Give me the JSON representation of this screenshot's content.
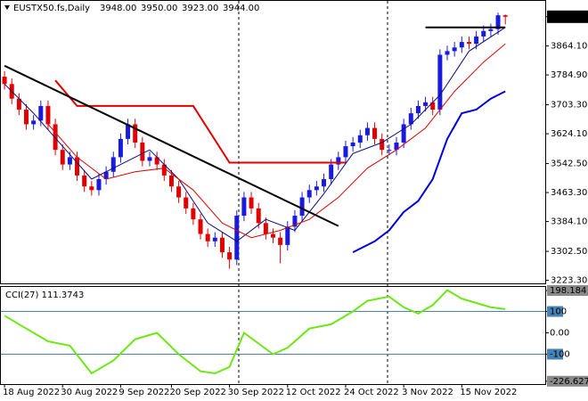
{
  "header": {
    "symbol": "EUSTX50.fs,Daily",
    "ohlc": [
      "3948.00",
      "3950.00",
      "3923.00",
      "3944.00"
    ]
  },
  "chart_data": [
    {
      "type": "candlestick",
      "up_color": "#1a1adf",
      "down_color": "#e00000",
      "open": [
        3780,
        3760,
        3720,
        3690,
        3650,
        3660,
        3700,
        3650,
        3580,
        3540,
        3560,
        3510,
        3480,
        3470,
        3500,
        3520,
        3560,
        3610,
        3650,
        3600,
        3550,
        3560,
        3540,
        3510,
        3480,
        3450,
        3420,
        3390,
        3350,
        3330,
        3340,
        3300,
        3280,
        3400,
        3450,
        3420,
        3380,
        3350,
        3340,
        3320,
        3370,
        3400,
        3450,
        3470,
        3480,
        3500,
        3540,
        3560,
        3590,
        3600,
        3620,
        3640,
        3610,
        3580,
        3580,
        3600,
        3650,
        3680,
        3700,
        3710,
        3690,
        3840,
        3850,
        3860,
        3875,
        3870,
        3890,
        3905,
        3910,
        3948
      ],
      "high": [
        3795,
        3775,
        3735,
        3705,
        3675,
        3715,
        3715,
        3665,
        3595,
        3575,
        3575,
        3525,
        3495,
        3515,
        3535,
        3575,
        3625,
        3665,
        3665,
        3615,
        3575,
        3575,
        3555,
        3525,
        3495,
        3465,
        3435,
        3405,
        3365,
        3355,
        3355,
        3315,
        3415,
        3465,
        3465,
        3435,
        3395,
        3365,
        3355,
        3385,
        3415,
        3465,
        3485,
        3495,
        3515,
        3555,
        3575,
        3605,
        3615,
        3635,
        3655,
        3655,
        3625,
        3595,
        3615,
        3665,
        3695,
        3715,
        3725,
        3725,
        3855,
        3865,
        3875,
        3890,
        3890,
        3905,
        3920,
        3925,
        3955,
        3950
      ],
      "low": [
        3745,
        3705,
        3675,
        3635,
        3635,
        3645,
        3635,
        3565,
        3525,
        3525,
        3495,
        3465,
        3455,
        3455,
        3485,
        3505,
        3545,
        3595,
        3585,
        3535,
        3535,
        3525,
        3495,
        3465,
        3435,
        3405,
        3375,
        3335,
        3315,
        3315,
        3285,
        3255,
        3265,
        3385,
        3405,
        3365,
        3335,
        3325,
        3270,
        3305,
        3355,
        3385,
        3435,
        3455,
        3465,
        3485,
        3525,
        3545,
        3575,
        3585,
        3605,
        3595,
        3565,
        3565,
        3565,
        3585,
        3635,
        3665,
        3685,
        3675,
        3675,
        3825,
        3835,
        3845,
        3855,
        3855,
        3875,
        3890,
        3895,
        3923
      ],
      "close": [
        3760,
        3720,
        3690,
        3650,
        3660,
        3700,
        3650,
        3580,
        3540,
        3560,
        3510,
        3480,
        3470,
        3500,
        3520,
        3560,
        3610,
        3650,
        3600,
        3550,
        3560,
        3540,
        3510,
        3480,
        3450,
        3420,
        3390,
        3350,
        3330,
        3340,
        3300,
        3280,
        3400,
        3450,
        3420,
        3380,
        3350,
        3340,
        3320,
        3370,
        3400,
        3450,
        3470,
        3480,
        3500,
        3540,
        3560,
        3590,
        3600,
        3620,
        3640,
        3610,
        3580,
        3580,
        3600,
        3650,
        3680,
        3700,
        3710,
        3690,
        3840,
        3850,
        3860,
        3875,
        3870,
        3890,
        3905,
        3910,
        3948,
        3944
      ],
      "overlays": [
        {
          "color": "#0a0a80",
          "width": 1,
          "x": [
            0,
            4,
            8,
            12,
            16,
            20,
            24,
            28,
            32,
            36,
            40,
            44,
            48,
            52,
            56,
            60,
            64,
            69
          ],
          "values": [
            3760,
            3680,
            3590,
            3500,
            3540,
            3580,
            3500,
            3380,
            3330,
            3390,
            3360,
            3460,
            3570,
            3600,
            3650,
            3730,
            3850,
            3915
          ]
        },
        {
          "color": "#e00000",
          "width": 1,
          "x": [
            6,
            10,
            14,
            18,
            22,
            26,
            30,
            34,
            38,
            42,
            46,
            50,
            54,
            58,
            62,
            66,
            69
          ],
          "values": [
            3650,
            3560,
            3500,
            3520,
            3530,
            3470,
            3380,
            3340,
            3360,
            3390,
            3450,
            3530,
            3580,
            3640,
            3740,
            3820,
            3870
          ]
        },
        {
          "color": "#0000e0",
          "width": 2,
          "x": [
            48,
            51,
            53,
            55,
            57,
            59,
            61,
            63,
            65,
            67,
            69
          ],
          "values": [
            3300,
            3330,
            3360,
            3410,
            3440,
            3500,
            3610,
            3680,
            3690,
            3720,
            3740
          ]
        },
        {
          "color": "#e00000",
          "width": 2,
          "x": [
            7,
            10,
            26,
            31,
            47
          ],
          "values": [
            3770,
            3700,
            3700,
            3545,
            3545
          ]
        },
        {
          "color": "#000000",
          "width": 2,
          "x": [
            0,
            46
          ],
          "values": [
            3810,
            3372
          ]
        },
        {
          "color": "#000000",
          "width": 2,
          "x": [
            58,
            69
          ],
          "values": [
            3915,
            3915
          ]
        }
      ],
      "xlim": [
        -0.5,
        74.5
      ],
      "ylim": [
        3215,
        3980
      ],
      "yticks": [
        {
          "value": 3944,
          "label": "3944.00"
        },
        {
          "value": 3864.1,
          "label": "3864.10"
        },
        {
          "value": 3784.9,
          "label": "3784.90"
        },
        {
          "value": 3703.3,
          "label": "3703.30"
        },
        {
          "value": 3624.1,
          "label": "3624.10"
        },
        {
          "value": 3542.5,
          "label": "3542.50"
        },
        {
          "value": 3463.3,
          "label": "3463.30"
        },
        {
          "value": 3384.1,
          "label": "3384.10"
        },
        {
          "value": 3302.5,
          "label": "3302.50"
        },
        {
          "value": 3223.3,
          "label": "3223.30"
        }
      ],
      "xticks": [
        {
          "value": 0,
          "label": "18 Aug 2022"
        },
        {
          "value": 8,
          "label": "30 Aug 2022"
        },
        {
          "value": 16,
          "label": "9 Sep 2022"
        },
        {
          "value": 23,
          "label": "20 Sep 2022"
        },
        {
          "value": 31,
          "label": "30 Sep 2022"
        },
        {
          "value": 39,
          "label": "12 Oct 2022"
        },
        {
          "value": 47,
          "label": "24 Oct 2022"
        },
        {
          "value": 55,
          "label": "3 Nov 2022"
        },
        {
          "value": 63,
          "label": "15 Nov 2022"
        }
      ]
    },
    {
      "type": "line",
      "title": "CCI(27) 111.3743",
      "series": [
        {
          "color": "#6ee614",
          "x": [
            0,
            3,
            6,
            9,
            12,
            15,
            18,
            21,
            24,
            27,
            29,
            31,
            33,
            35,
            37,
            39,
            42,
            45,
            48,
            50,
            53,
            55,
            57,
            59,
            61,
            63,
            65,
            67,
            69
          ],
          "values": [
            80,
            20,
            -40,
            -60,
            -190,
            -130,
            -30,
            0,
            -100,
            -180,
            -190,
            -160,
            0,
            -50,
            -100,
            -70,
            20,
            40,
            100,
            150,
            170,
            120,
            90,
            130,
            200,
            160,
            140,
            120,
            111
          ]
        }
      ],
      "xlim": [
        -0.5,
        74.5
      ],
      "ylim": [
        -240,
        215
      ],
      "level_lines": [
        100,
        -100
      ],
      "level_color": "#4682b4",
      "yticks": [
        {
          "value": 198.184,
          "label": "198.184"
        },
        100,
        {
          "value": 0,
          "label": "0.00"
        },
        -100,
        {
          "value": -226.6277,
          "label": "-226.6277"
        }
      ]
    }
  ]
}
